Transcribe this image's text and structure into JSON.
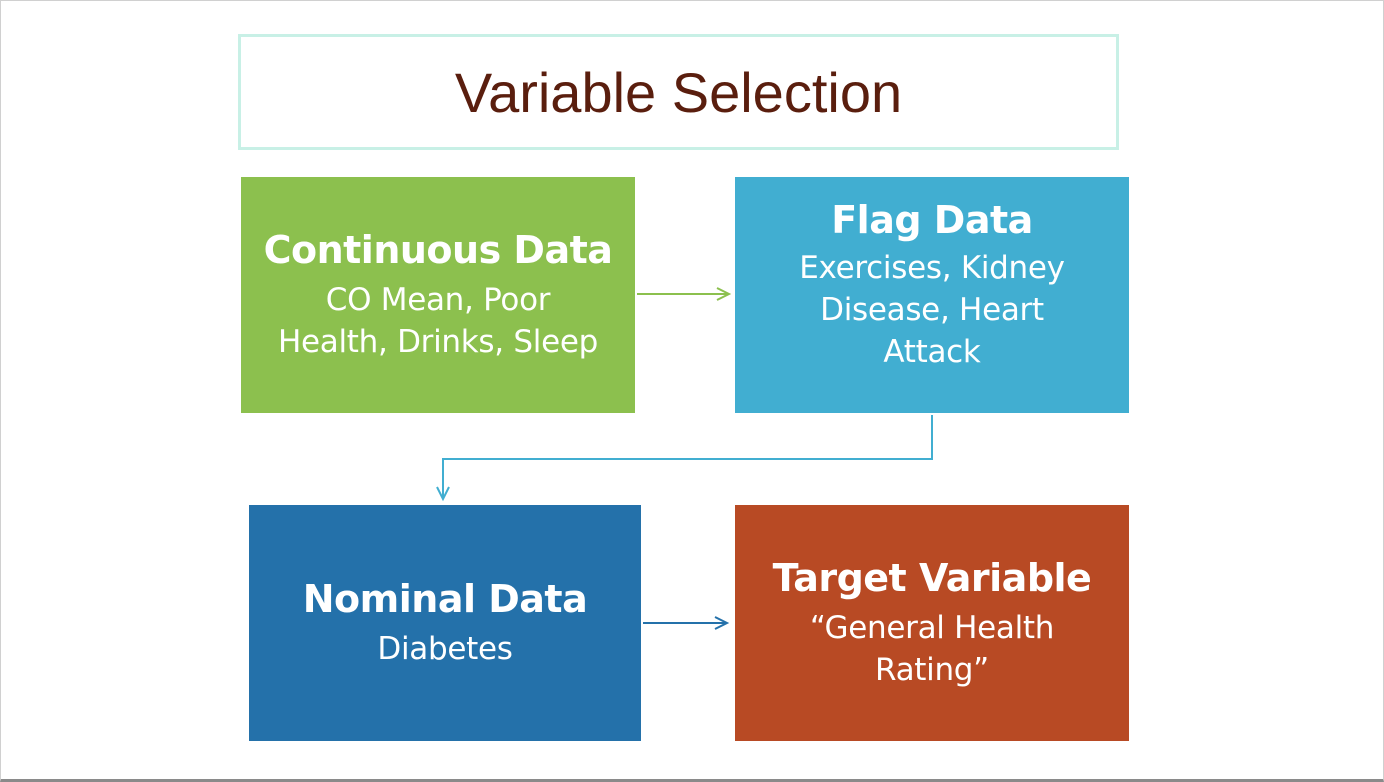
{
  "title": "Variable Selection",
  "colors": {
    "continuous": "#8cc04e",
    "flag": "#41aed1",
    "nominal": "#2471aa",
    "target": "#b84a24",
    "title_text": "#5a1e0e",
    "title_border": "#c8f0e6"
  },
  "boxes": {
    "continuous": {
      "heading": "Continuous Data",
      "lines": [
        "CO Mean, Poor",
        "Health, Drinks, Sleep"
      ]
    },
    "flag": {
      "heading": "Flag Data",
      "lines": [
        "Exercises, Kidney",
        "Disease, Heart",
        "Attack"
      ]
    },
    "nominal": {
      "heading": "Nominal Data",
      "lines": [
        "Diabetes"
      ]
    },
    "target": {
      "heading": "Target Variable",
      "lines": [
        "“General Health",
        "Rating”"
      ]
    }
  },
  "connectors": [
    {
      "from": "continuous",
      "to": "flag",
      "color": "#8cc04e"
    },
    {
      "from": "flag",
      "to": "nominal",
      "color": "#41aed1"
    },
    {
      "from": "nominal",
      "to": "target",
      "color": "#2471aa"
    }
  ]
}
